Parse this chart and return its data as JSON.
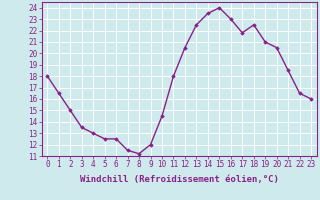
{
  "x": [
    0,
    1,
    2,
    3,
    4,
    5,
    6,
    7,
    8,
    9,
    10,
    11,
    12,
    13,
    14,
    15,
    16,
    17,
    18,
    19,
    20,
    21,
    22,
    23
  ],
  "y": [
    18,
    16.5,
    15,
    13.5,
    13,
    12.5,
    12.5,
    11.5,
    11.2,
    12,
    14.5,
    18,
    20.5,
    22.5,
    23.5,
    24,
    23,
    21.8,
    22.5,
    21,
    20.5,
    18.5,
    16.5,
    16
  ],
  "line_color": "#882288",
  "marker": "D",
  "markersize": 1.8,
  "linewidth": 1.0,
  "xlabel": "Windchill (Refroidissement éolien,°C)",
  "xlabel_fontsize": 6.5,
  "ylabel_ticks": [
    11,
    12,
    13,
    14,
    15,
    16,
    17,
    18,
    19,
    20,
    21,
    22,
    23,
    24
  ],
  "xlim": [
    -0.5,
    23.5
  ],
  "ylim": [
    11,
    24.5
  ],
  "bg_color": "#ceeaec",
  "grid_color": "#b8d8dc",
  "tick_fontsize": 5.5,
  "spine_color": "#888888"
}
